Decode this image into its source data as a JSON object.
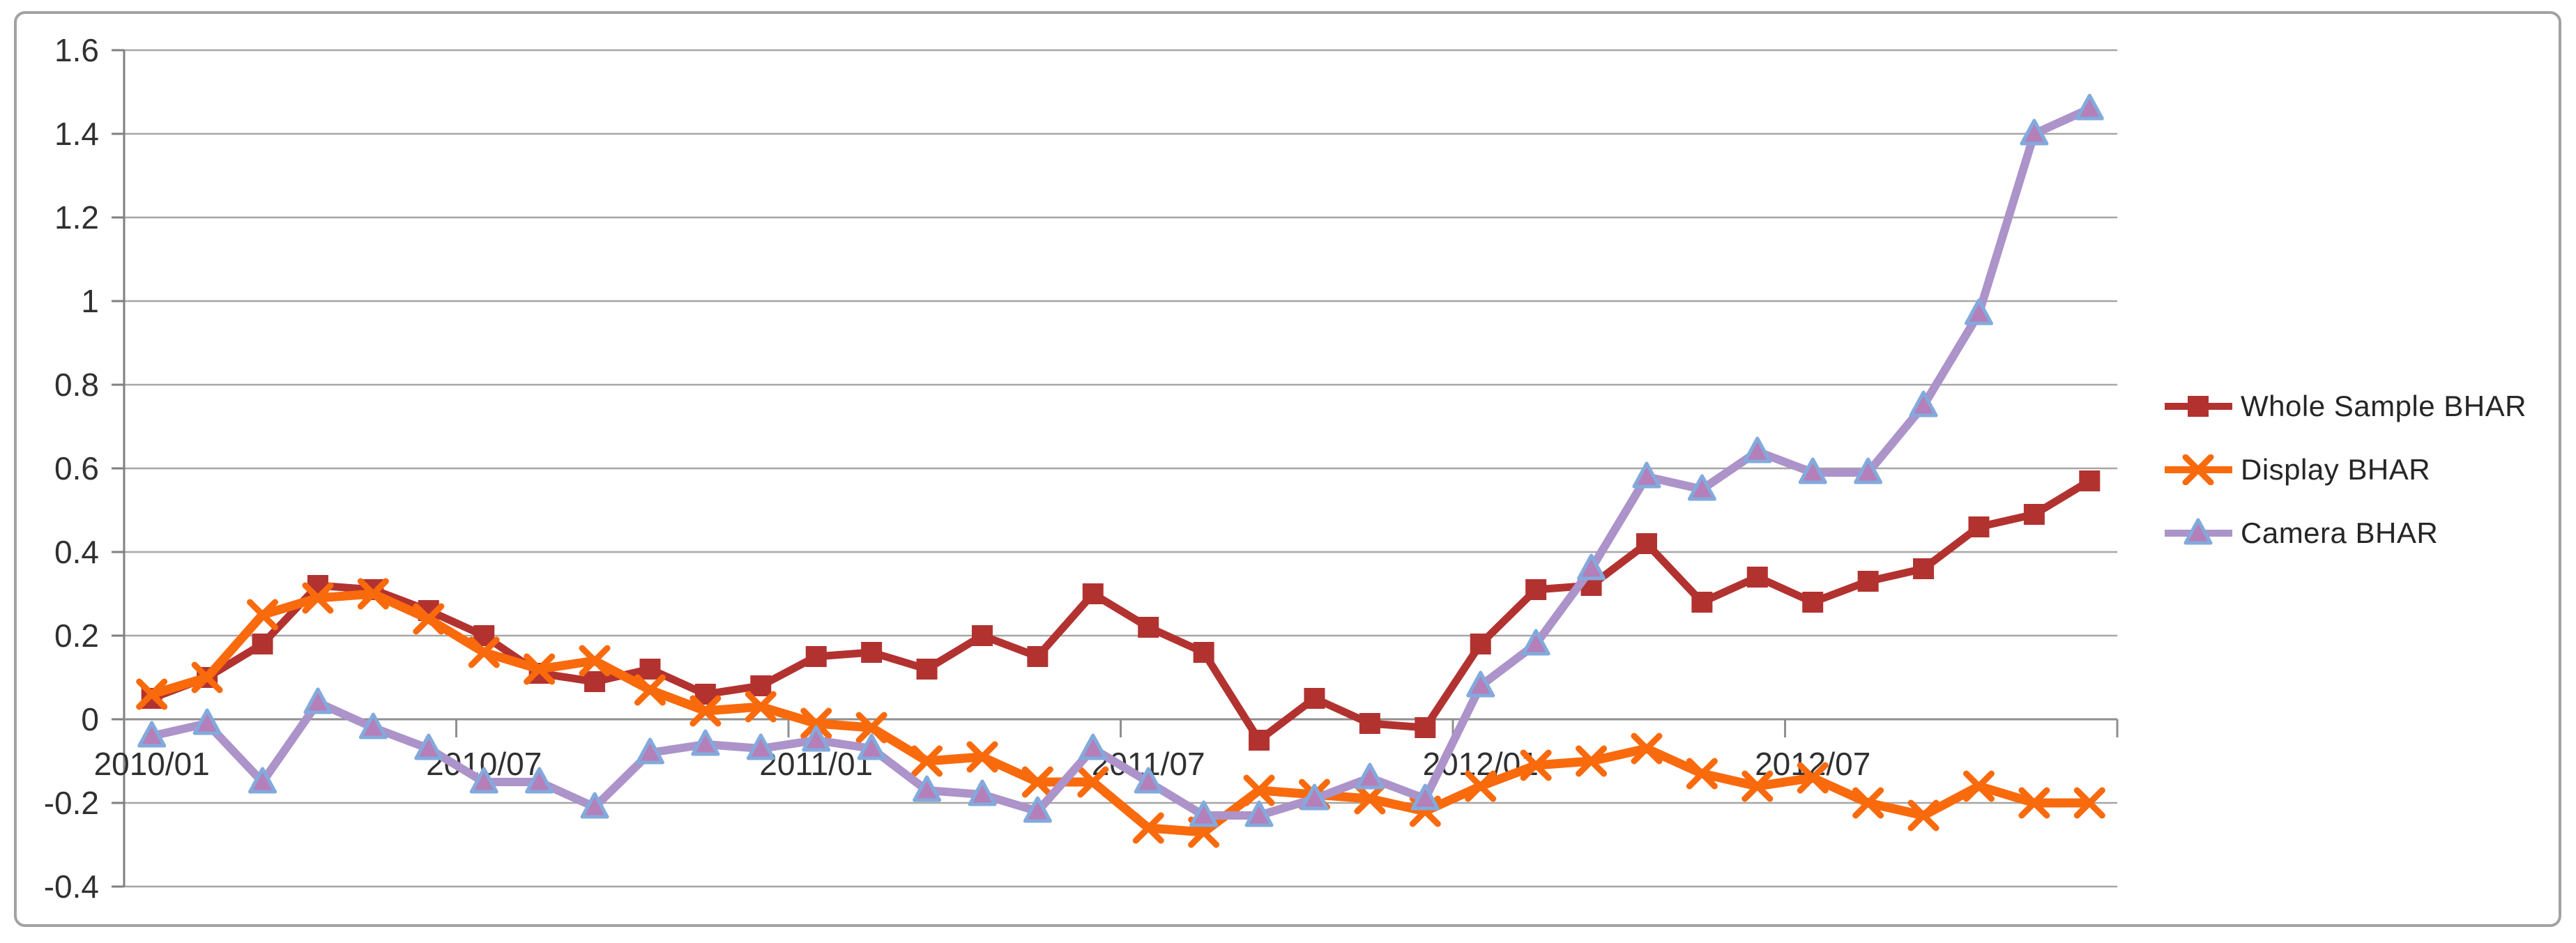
{
  "chart_data": {
    "type": "line",
    "title": "",
    "xlabel": "",
    "ylabel": "",
    "ylim": [
      -0.4,
      1.6
    ],
    "y_tick_step": 0.2,
    "grid": "horizontal",
    "legend_position": "right",
    "x_label_every": 6,
    "visible_x_labels": [
      "2010/01",
      "2010/07",
      "2011/01",
      "2011/07",
      "2012/01",
      "2012/07"
    ],
    "y_tick_labels": [
      "1.6",
      "1.4",
      "1.2",
      "1",
      "0.8",
      "0.6",
      "0.4",
      "0.2",
      "0",
      "-0.2",
      "-0.4"
    ],
    "y_tick_values": [
      1.6,
      1.4,
      1.2,
      1.0,
      0.8,
      0.6,
      0.4,
      0.2,
      0.0,
      -0.2,
      -0.4
    ],
    "x": [
      "2010/01",
      "2010/02",
      "2010/03",
      "2010/04",
      "2010/05",
      "2010/06",
      "2010/07",
      "2010/08",
      "2010/09",
      "2010/10",
      "2010/11",
      "2010/12",
      "2011/01",
      "2011/02",
      "2011/03",
      "2011/04",
      "2011/05",
      "2011/06",
      "2011/07",
      "2011/08",
      "2011/09",
      "2011/10",
      "2011/11",
      "2011/12",
      "2012/01",
      "2012/02",
      "2012/03",
      "2012/04",
      "2012/05",
      "2012/06",
      "2012/07",
      "2012/08",
      "2012/09",
      "2012/10",
      "2012/11",
      "2012/12"
    ],
    "series": [
      {
        "name": "Whole Sample BHAR",
        "color": "#B23230",
        "marker": "square",
        "marker_fill": "#B23230",
        "marker_stroke": "#B23230",
        "line_width": 11,
        "values": [
          0.05,
          0.1,
          0.18,
          0.32,
          0.31,
          0.26,
          0.2,
          0.11,
          0.09,
          0.12,
          0.06,
          0.08,
          0.15,
          0.16,
          0.12,
          0.2,
          0.15,
          0.3,
          0.22,
          0.16,
          -0.05,
          0.05,
          -0.01,
          -0.02,
          0.18,
          0.31,
          0.32,
          0.42,
          0.28,
          0.34,
          0.28,
          0.33,
          0.36,
          0.46,
          0.49,
          0.57
        ]
      },
      {
        "name": "Display BHAR",
        "color": "#F96A0D",
        "marker": "x",
        "marker_fill": "#F96A0D",
        "marker_stroke": "#F96A0D",
        "line_width": 13,
        "values": [
          0.06,
          0.1,
          0.25,
          0.29,
          0.3,
          0.24,
          0.16,
          0.12,
          0.14,
          0.07,
          0.02,
          0.03,
          -0.01,
          -0.02,
          -0.1,
          -0.09,
          -0.15,
          -0.15,
          -0.26,
          -0.27,
          -0.17,
          -0.18,
          -0.19,
          -0.22,
          -0.16,
          -0.11,
          -0.1,
          -0.07,
          -0.13,
          -0.16,
          -0.14,
          -0.2,
          -0.23,
          -0.16,
          -0.2,
          -0.2
        ]
      },
      {
        "name": "Camera BHAR",
        "color": "#AC93C9",
        "marker": "triangle",
        "marker_fill": "#B57FBA",
        "marker_stroke": "#82AADC",
        "line_width": 12,
        "values": [
          -0.04,
          -0.01,
          -0.15,
          0.04,
          -0.02,
          -0.07,
          -0.15,
          -0.15,
          -0.21,
          -0.08,
          -0.06,
          -0.07,
          -0.05,
          -0.07,
          -0.17,
          -0.18,
          -0.22,
          -0.07,
          -0.15,
          -0.23,
          -0.23,
          -0.19,
          -0.14,
          -0.19,
          0.08,
          0.18,
          0.36,
          0.58,
          0.55,
          0.64,
          0.59,
          0.59,
          0.75,
          0.97,
          1.4,
          1.46
        ]
      }
    ]
  },
  "palette": {
    "gridline": "#A6A6A6",
    "axis_line": "#808080",
    "zero_axis_line": "#8F8F8F",
    "axis_text": "#303030",
    "frame_border": "#A2A2A2",
    "background": "#FFFFFF"
  }
}
